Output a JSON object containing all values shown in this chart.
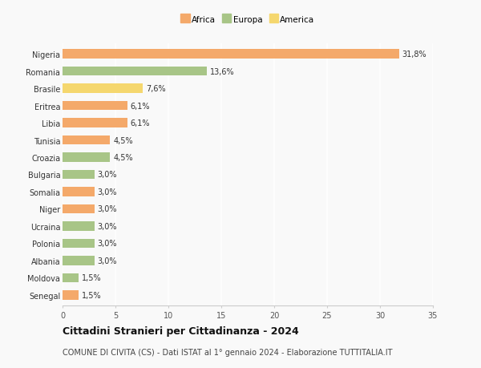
{
  "categories": [
    "Nigeria",
    "Romania",
    "Brasile",
    "Eritrea",
    "Libia",
    "Tunisia",
    "Croazia",
    "Bulgaria",
    "Somalia",
    "Niger",
    "Ucraina",
    "Polonia",
    "Albania",
    "Moldova",
    "Senegal"
  ],
  "values": [
    31.8,
    13.6,
    7.6,
    6.1,
    6.1,
    4.5,
    4.5,
    3.0,
    3.0,
    3.0,
    3.0,
    3.0,
    3.0,
    1.5,
    1.5
  ],
  "labels": [
    "31,8%",
    "13,6%",
    "7,6%",
    "6,1%",
    "6,1%",
    "4,5%",
    "4,5%",
    "3,0%",
    "3,0%",
    "3,0%",
    "3,0%",
    "3,0%",
    "3,0%",
    "1,5%",
    "1,5%"
  ],
  "continents": [
    "Africa",
    "Europa",
    "America",
    "Africa",
    "Africa",
    "Africa",
    "Europa",
    "Europa",
    "Africa",
    "Africa",
    "Europa",
    "Europa",
    "Europa",
    "Europa",
    "Africa"
  ],
  "colors": {
    "Africa": "#F4A96A",
    "Europa": "#A8C587",
    "America": "#F5D76E"
  },
  "legend_labels": [
    "Africa",
    "Europa",
    "America"
  ],
  "legend_colors": [
    "#F4A96A",
    "#A8C587",
    "#F5D76E"
  ],
  "title": "Cittadini Stranieri per Cittadinanza - 2024",
  "subtitle": "COMUNE DI CIVITA (CS) - Dati ISTAT al 1° gennaio 2024 - Elaborazione TUTTITALIA.IT",
  "xlim": [
    0,
    35
  ],
  "xticks": [
    0,
    5,
    10,
    15,
    20,
    25,
    30,
    35
  ],
  "background_color": "#f9f9f9",
  "bar_height": 0.55,
  "title_fontsize": 9,
  "subtitle_fontsize": 7,
  "tick_fontsize": 7,
  "label_fontsize": 7,
  "legend_fontsize": 7.5
}
